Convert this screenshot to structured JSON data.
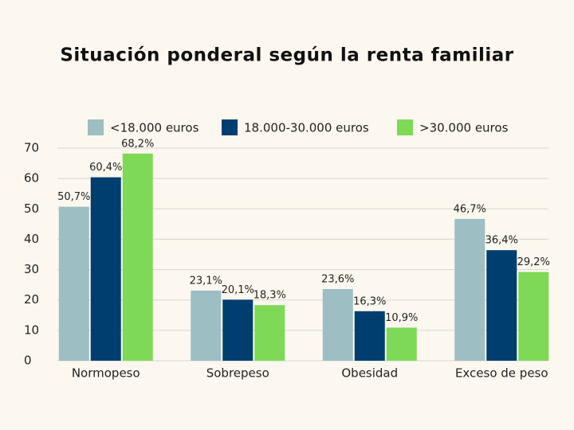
{
  "chart_data": {
    "type": "bar",
    "title": "Situación ponderal según la renta familiar",
    "categories": [
      "Normopeso",
      "Sobrepeso",
      "Obesidad",
      "Exceso de peso"
    ],
    "series": [
      {
        "name": "<18.000 euros",
        "color": "#9dbec3",
        "values": [
          50.7,
          23.1,
          23.6,
          46.7
        ],
        "value_labels": [
          "50,7%",
          "23,1%",
          "23,6%",
          "46,7%"
        ]
      },
      {
        "name": "18.000-30.000 euros",
        "color": "#003e6f",
        "values": [
          60.4,
          20.1,
          16.3,
          36.4
        ],
        "value_labels": [
          "60,4%",
          "20,1%",
          "16,3%",
          "36,4%"
        ]
      },
      {
        "name": ">30.000 euros",
        "color": "#7ed957",
        "values": [
          68.2,
          18.3,
          10.9,
          29.2
        ],
        "value_labels": [
          "68,2%",
          "18,3%",
          "10,9%",
          "29,2%"
        ]
      }
    ],
    "ylim": [
      0,
      70
    ],
    "yticks": [
      0,
      10,
      20,
      30,
      40,
      50,
      60,
      70
    ],
    "grid": true,
    "legend": "top"
  }
}
